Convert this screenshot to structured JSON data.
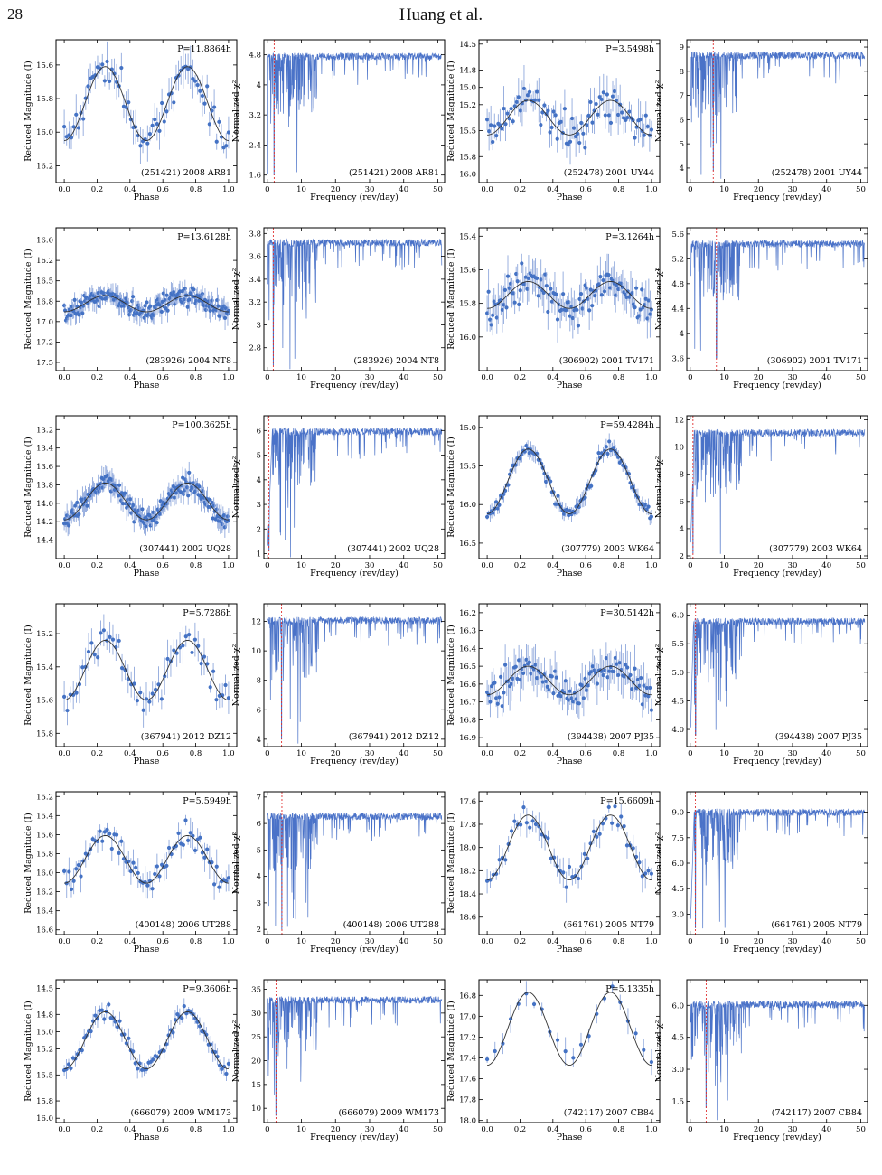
{
  "page": {
    "number": "28",
    "running_head": "Huang et al."
  },
  "chart_data": [
    {
      "type": "scatter",
      "panel": "lightcurve",
      "title": "P=11.8864h",
      "object": "(251421) 2008 AR81",
      "xlabel": "Phase",
      "ylabel": "Reduced Magnitude (I)",
      "xlim": [
        -0.05,
        1.05
      ],
      "ylim": [
        16.3,
        15.45
      ],
      "invert_y": true,
      "xticks": [
        0,
        0.2,
        0.4,
        0.6,
        0.8,
        1.0
      ],
      "yticks": [
        15.6,
        15.8,
        16.0,
        16.2
      ],
      "model": {
        "mean": 15.83,
        "amp": 0.22
      },
      "seed": 11,
      "n_points": 70,
      "scatter": 0.09
    },
    {
      "type": "line",
      "panel": "periodogram",
      "object": "(251421) 2008 AR81",
      "xlabel": "Frequency (rev/day)",
      "ylabel": "Normalized χ²",
      "xlim": [
        -1,
        52
      ],
      "ylim": [
        1.4,
        5.2
      ],
      "xticks": [
        0,
        10,
        20,
        30,
        40,
        50
      ],
      "yticks": [
        1.6,
        2.4,
        3.2,
        4.0,
        4.8
      ],
      "baseline": 4.85,
      "best_freq": 2.02,
      "min_value": 1.6,
      "seed": 12
    },
    {
      "type": "scatter",
      "panel": "lightcurve",
      "title": "P=3.5498h",
      "object": "(252478) 2001 UY44",
      "xlabel": "Phase",
      "ylabel": "Reduced Magnitude (I)",
      "xlim": [
        -0.05,
        1.05
      ],
      "ylim": [
        16.1,
        14.45
      ],
      "invert_y": true,
      "xticks": [
        0,
        0.2,
        0.4,
        0.6,
        0.8,
        1.0
      ],
      "yticks": [
        14.5,
        14.8,
        15.0,
        15.2,
        15.5,
        15.8,
        16.0
      ],
      "model": {
        "mean": 15.35,
        "amp": 0.2
      },
      "seed": 21,
      "n_points": 90,
      "scatter": 0.22
    },
    {
      "type": "line",
      "panel": "periodogram",
      "object": "(252478) 2001 UY44",
      "xlabel": "Frequency (rev/day)",
      "ylabel": "Normalized χ²",
      "xlim": [
        -1,
        52
      ],
      "ylim": [
        3.4,
        9.3
      ],
      "xticks": [
        0,
        10,
        20,
        30,
        40,
        50
      ],
      "yticks": [
        4,
        5,
        6,
        7,
        8,
        9
      ],
      "baseline": 8.8,
      "best_freq": 6.76,
      "min_value": 3.9,
      "seed": 22
    },
    {
      "type": "scatter",
      "panel": "lightcurve",
      "title": "P=13.6128h",
      "object": "(283926) 2004 NT8",
      "xlabel": "Phase",
      "ylabel": "Reduced Magnitude (I)",
      "xlim": [
        -0.05,
        1.05
      ],
      "ylim": [
        17.6,
        15.85
      ],
      "invert_y": true,
      "xticks": [
        0,
        0.2,
        0.4,
        0.6,
        0.8,
        1.0
      ],
      "yticks": [
        16.0,
        16.25,
        16.5,
        16.75,
        17.0,
        17.25,
        17.5
      ],
      "ytick_labels": [
        "16.0",
        "16.2",
        "16.5",
        "16.8",
        "17.0",
        "17.2",
        "17.5"
      ],
      "model": {
        "mean": 16.78,
        "amp": 0.1
      },
      "seed": 31,
      "n_points": 190,
      "scatter": 0.11
    },
    {
      "type": "line",
      "panel": "periodogram",
      "object": "(283926) 2004 NT8",
      "xlabel": "Frequency (rev/day)",
      "ylabel": "Normalized χ²",
      "xlim": [
        -1,
        52
      ],
      "ylim": [
        2.6,
        3.85
      ],
      "xticks": [
        0,
        10,
        20,
        30,
        40,
        50
      ],
      "yticks": [
        2.8,
        3.0,
        3.2,
        3.4,
        3.6,
        3.8
      ],
      "baseline": 3.75,
      "best_freq": 1.76,
      "min_value": 2.65,
      "seed": 32
    },
    {
      "type": "scatter",
      "panel": "lightcurve",
      "title": "P=3.1264h",
      "object": "(306902) 2001 TV171",
      "xlabel": "Phase",
      "ylabel": "Reduced Magnitude (I)",
      "xlim": [
        -0.05,
        1.05
      ],
      "ylim": [
        16.2,
        15.35
      ],
      "invert_y": true,
      "xticks": [
        0,
        0.2,
        0.4,
        0.6,
        0.8,
        1.0
      ],
      "yticks": [
        15.4,
        15.6,
        15.8,
        16.0
      ],
      "model": {
        "mean": 15.75,
        "amp": 0.08
      },
      "seed": 41,
      "n_points": 120,
      "scatter": 0.1
    },
    {
      "type": "line",
      "panel": "periodogram",
      "object": "(306902) 2001 TV171",
      "xlabel": "Frequency (rev/day)",
      "ylabel": "Normalized χ²",
      "xlim": [
        -1,
        52
      ],
      "ylim": [
        3.4,
        5.7
      ],
      "xticks": [
        0,
        10,
        20,
        30,
        40,
        50
      ],
      "yticks": [
        3.6,
        4.0,
        4.4,
        4.8,
        5.2,
        5.6
      ],
      "baseline": 5.5,
      "best_freq": 7.68,
      "min_value": 3.6,
      "seed": 42
    },
    {
      "type": "scatter",
      "panel": "lightcurve",
      "title": "P=100.3625h",
      "object": "(307441) 2002 UQ28",
      "xlabel": "Phase",
      "ylabel": "Reduced Magnitude (I)",
      "xlim": [
        -0.05,
        1.05
      ],
      "ylim": [
        14.6,
        13.05
      ],
      "invert_y": true,
      "xticks": [
        0,
        0.2,
        0.4,
        0.6,
        0.8,
        1.0
      ],
      "yticks": [
        13.2,
        13.4,
        13.6,
        13.8,
        14.0,
        14.2,
        14.4
      ],
      "model": {
        "mean": 13.98,
        "amp": 0.2
      },
      "seed": 51,
      "n_points": 180,
      "scatter": 0.1
    },
    {
      "type": "line",
      "panel": "periodogram",
      "object": "(307441) 2002 UQ28",
      "xlabel": "Frequency (rev/day)",
      "ylabel": "Normalized χ²",
      "xlim": [
        -1,
        52
      ],
      "ylim": [
        0.8,
        6.6
      ],
      "xticks": [
        0,
        10,
        20,
        30,
        40,
        50
      ],
      "yticks": [
        1,
        2,
        3,
        4,
        5,
        6
      ],
      "baseline": 6.1,
      "best_freq": 0.48,
      "min_value": 1.1,
      "seed": 52,
      "rise": 1.5
    },
    {
      "type": "scatter",
      "panel": "lightcurve",
      "title": "P=59.4284h",
      "object": "(307779) 2003 WK64",
      "xlabel": "Phase",
      "ylabel": "Reduced Magnitude (I)",
      "xlim": [
        -0.05,
        1.05
      ],
      "ylim": [
        16.7,
        14.85
      ],
      "invert_y": true,
      "xticks": [
        0,
        0.2,
        0.4,
        0.6,
        0.8,
        1.0
      ],
      "yticks": [
        15.0,
        15.5,
        16.0,
        16.5
      ],
      "model": {
        "mean": 15.7,
        "amp": 0.42
      },
      "seed": 61,
      "n_points": 110,
      "scatter": 0.08
    },
    {
      "type": "line",
      "panel": "periodogram",
      "object": "(307779) 2003 WK64",
      "xlabel": "Frequency (rev/day)",
      "ylabel": "Normalized χ²",
      "xlim": [
        -1,
        52
      ],
      "ylim": [
        1.8,
        12.3
      ],
      "xticks": [
        0,
        10,
        20,
        30,
        40,
        50
      ],
      "yticks": [
        2,
        4,
        6,
        8,
        10,
        12
      ],
      "baseline": 11.3,
      "best_freq": 0.81,
      "min_value": 2.2,
      "seed": 62,
      "rise": 1.2
    },
    {
      "type": "scatter",
      "panel": "lightcurve",
      "title": "P=5.7286h",
      "object": "(367941) 2012 DZ12",
      "xlabel": "Phase",
      "ylabel": "Reduced Magnitude (I)",
      "xlim": [
        -0.05,
        1.05
      ],
      "ylim": [
        15.88,
        15.02
      ],
      "invert_y": true,
      "xticks": [
        0,
        0.2,
        0.4,
        0.6,
        0.8,
        1.0
      ],
      "yticks": [
        15.2,
        15.4,
        15.6,
        15.8
      ],
      "model": {
        "mean": 15.42,
        "amp": 0.18
      },
      "seed": 71,
      "n_points": 55,
      "scatter": 0.08
    },
    {
      "type": "line",
      "panel": "periodogram",
      "object": "(367941) 2012 DZ12",
      "xlabel": "Frequency (rev/day)",
      "ylabel": "Normalized χ²",
      "xlim": [
        -1,
        52
      ],
      "ylim": [
        3.5,
        13.2
      ],
      "xticks": [
        0,
        10,
        20,
        30,
        40,
        50
      ],
      "yticks": [
        4,
        6,
        8,
        10,
        12
      ],
      "baseline": 12.3,
      "best_freq": 4.19,
      "min_value": 4.0,
      "seed": 72
    },
    {
      "type": "scatter",
      "panel": "lightcurve",
      "title": "P=30.5142h",
      "object": "(394438) 2007 PJ35",
      "xlabel": "Phase",
      "ylabel": "Reduced Magnitude (I)",
      "xlim": [
        -0.05,
        1.05
      ],
      "ylim": [
        16.95,
        16.15
      ],
      "invert_y": true,
      "xticks": [
        0,
        0.2,
        0.4,
        0.6,
        0.8,
        1.0
      ],
      "yticks": [
        16.2,
        16.3,
        16.4,
        16.5,
        16.6,
        16.7,
        16.8,
        16.9
      ],
      "model": {
        "mean": 16.58,
        "amp": 0.08
      },
      "seed": 81,
      "n_points": 110,
      "scatter": 0.1
    },
    {
      "type": "line",
      "panel": "periodogram",
      "object": "(394438) 2007 PJ35",
      "xlabel": "Frequency (rev/day)",
      "ylabel": "Normalized χ²",
      "xlim": [
        -1,
        52
      ],
      "ylim": [
        3.7,
        6.2
      ],
      "xticks": [
        0,
        10,
        20,
        30,
        40,
        50
      ],
      "yticks": [
        4.0,
        4.5,
        5.0,
        5.5,
        6.0
      ],
      "ytick_labels": [
        "4.0",
        "4.5",
        "5.0",
        "5.5",
        "6.0"
      ],
      "baseline": 5.95,
      "best_freq": 1.57,
      "min_value": 3.9,
      "seed": 82,
      "rise": 1.0
    },
    {
      "type": "scatter",
      "panel": "lightcurve",
      "title": "P=5.5949h",
      "object": "(400148) 2006 UT288",
      "xlabel": "Phase",
      "ylabel": "Reduced Magnitude (I)",
      "xlim": [
        -0.05,
        1.05
      ],
      "ylim": [
        16.65,
        15.15
      ],
      "invert_y": true,
      "xticks": [
        0,
        0.2,
        0.4,
        0.6,
        0.8,
        1.0
      ],
      "yticks": [
        15.2,
        15.4,
        15.6,
        15.8,
        16.0,
        16.2,
        16.4,
        16.6
      ],
      "model": {
        "mean": 15.86,
        "amp": 0.25
      },
      "seed": 91,
      "n_points": 70,
      "scatter": 0.14
    },
    {
      "type": "line",
      "panel": "periodogram",
      "object": "(400148) 2006 UT288",
      "xlabel": "Frequency (rev/day)",
      "ylabel": "Normalized χ²",
      "xlim": [
        -1,
        52
      ],
      "ylim": [
        1.8,
        7.2
      ],
      "xticks": [
        0,
        10,
        20,
        30,
        40,
        50
      ],
      "yticks": [
        2,
        3,
        4,
        5,
        6,
        7
      ],
      "baseline": 6.4,
      "best_freq": 4.29,
      "min_value": 2.0,
      "seed": 92
    },
    {
      "type": "scatter",
      "panel": "lightcurve",
      "title": "P=15.6609h",
      "object": "(661761) 2005 NT79",
      "xlabel": "Phase",
      "ylabel": "Reduced Magnitude (I)",
      "xlim": [
        -0.05,
        1.05
      ],
      "ylim": [
        18.75,
        17.52
      ],
      "invert_y": true,
      "xticks": [
        0,
        0.2,
        0.4,
        0.6,
        0.8,
        1.0
      ],
      "yticks": [
        17.6,
        17.8,
        18.0,
        18.2,
        18.4,
        18.6
      ],
      "model": {
        "mean": 18.0,
        "amp": 0.28
      },
      "seed": 101,
      "n_points": 55,
      "scatter": 0.1
    },
    {
      "type": "line",
      "panel": "periodogram",
      "object": "(661761) 2005 NT79",
      "xlabel": "Frequency (rev/day)",
      "ylabel": "Normalized χ²",
      "xlim": [
        -1,
        52
      ],
      "ylim": [
        1.8,
        10.2
      ],
      "xticks": [
        0,
        10,
        20,
        30,
        40,
        50
      ],
      "yticks": [
        3.0,
        4.5,
        6.0,
        7.5,
        9.0
      ],
      "ytick_labels": [
        "3.0",
        "4.5",
        "6.0",
        "7.5",
        "9.0"
      ],
      "baseline": 9.2,
      "best_freq": 1.53,
      "min_value": 2.2,
      "seed": 102,
      "rise": 1.2
    },
    {
      "type": "scatter",
      "panel": "lightcurve",
      "title": "P=9.3606h",
      "object": "(666079) 2009 WM173",
      "xlabel": "Phase",
      "ylabel": "Reduced Magnitude (I)",
      "xlim": [
        -0.05,
        1.05
      ],
      "ylim": [
        16.05,
        14.4
      ],
      "invert_y": true,
      "xticks": [
        0,
        0.2,
        0.4,
        0.6,
        0.8,
        1.0
      ],
      "yticks": [
        14.5,
        14.8,
        15.0,
        15.2,
        15.5,
        15.8,
        16.0
      ],
      "model": {
        "mean": 15.1,
        "amp": 0.33
      },
      "seed": 111,
      "n_points": 75,
      "scatter": 0.08
    },
    {
      "type": "line",
      "panel": "periodogram",
      "object": "(666079) 2009 WM173",
      "xlabel": "Frequency (rev/day)",
      "ylabel": "Normalized χ²",
      "xlim": [
        -1,
        52
      ],
      "ylim": [
        7,
        37
      ],
      "xticks": [
        0,
        10,
        20,
        30,
        40,
        50
      ],
      "yticks": [
        10,
        15,
        20,
        25,
        30,
        35
      ],
      "baseline": 33.5,
      "best_freq": 2.56,
      "min_value": 8.5,
      "seed": 112
    },
    {
      "type": "scatter",
      "panel": "lightcurve",
      "title": "P=5.1335h",
      "object": "(742117) 2007 CB84",
      "xlabel": "Phase",
      "ylabel": "Reduced Magnitude (I)",
      "xlim": [
        -0.05,
        1.05
      ],
      "ylim": [
        18.02,
        16.65
      ],
      "invert_y": true,
      "xticks": [
        0,
        0.2,
        0.4,
        0.6,
        0.8,
        1.0
      ],
      "yticks": [
        16.8,
        17.0,
        17.2,
        17.4,
        17.6,
        17.8,
        18.0
      ],
      "model": {
        "mean": 17.12,
        "amp": 0.35
      },
      "seed": 121,
      "n_points": 22,
      "scatter": 0.1
    },
    {
      "type": "line",
      "panel": "periodogram",
      "object": "(742117) 2007 CB84",
      "xlabel": "Frequency (rev/day)",
      "ylabel": "Normalized χ²",
      "xlim": [
        -1,
        52
      ],
      "ylim": [
        0.5,
        7.2
      ],
      "xticks": [
        0,
        10,
        20,
        30,
        40,
        50
      ],
      "yticks": [
        1.5,
        3.0,
        4.5,
        6.0
      ],
      "ytick_labels": [
        "1.5",
        "3.0",
        "4.5",
        "6.0"
      ],
      "baseline": 6.2,
      "best_freq": 4.68,
      "min_value": 1.2,
      "seed": 122
    }
  ],
  "colors": {
    "points": "#4472c4",
    "errorbar": "#8fa8dc",
    "model": "#333333",
    "periodogram": "#4a72c8",
    "best_freq": "#e03030"
  }
}
